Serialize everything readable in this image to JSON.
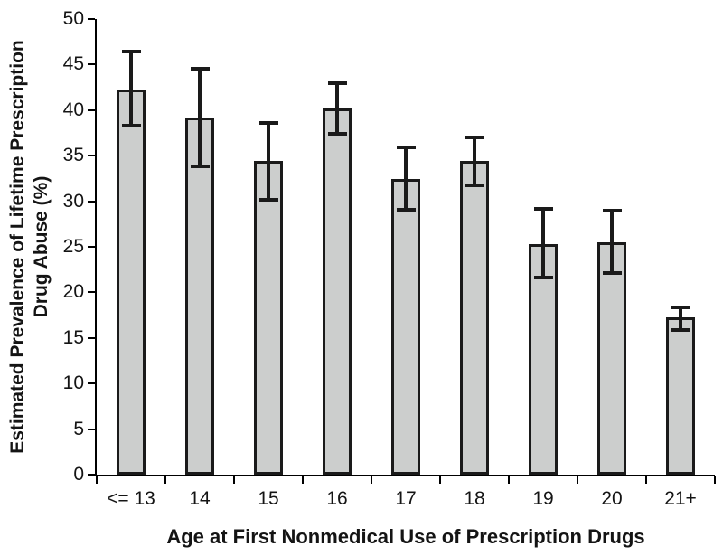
{
  "chart_data": {
    "type": "bar",
    "xlabel": "Age at First Nonmedical Use of Prescription Drugs",
    "ylabel": "Estimated Prevalence of Lifetime Prescription Drug Abuse (%)",
    "ylabel_lines": [
      "Estimated Prevalence of Lifetime Prescription",
      "Drug Abuse (%)"
    ],
    "categories": [
      "<= 13",
      "14",
      "15",
      "16",
      "17",
      "18",
      "19",
      "20",
      "21+"
    ],
    "values": [
      42.3,
      39.2,
      34.4,
      40.2,
      32.4,
      34.4,
      25.3,
      25.5,
      17.3
    ],
    "error_high": [
      46.4,
      44.5,
      38.6,
      43.0,
      35.9,
      37.0,
      29.2,
      29.0,
      18.4
    ],
    "error_low": [
      38.3,
      33.8,
      30.2,
      37.4,
      29.1,
      31.7,
      21.6,
      22.1,
      15.9
    ],
    "ylim": [
      0,
      50
    ],
    "yticks": [
      0,
      5,
      10,
      15,
      20,
      25,
      30,
      35,
      40,
      45,
      50
    ],
    "grid": "off",
    "legend": "none",
    "colors": {
      "bar_fill": "#cccecd",
      "bar_border": "#1a1a1a",
      "error_bar": "#1a1a1a",
      "axis": "#000000",
      "background": "#ffffff",
      "text": "#141414"
    }
  }
}
